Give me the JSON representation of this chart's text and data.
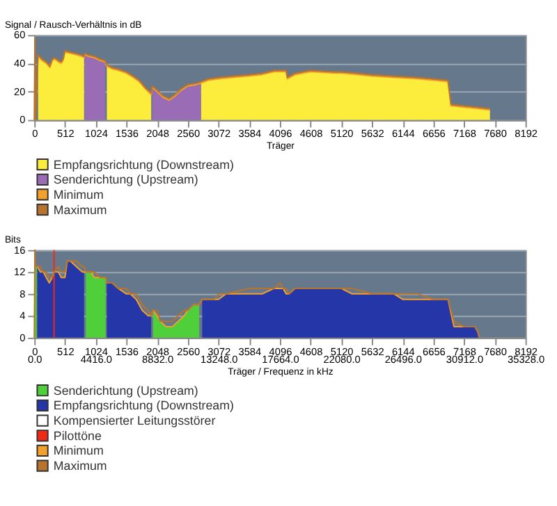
{
  "chart_data": [
    {
      "type": "area",
      "ylabel": "Signal / Rausch-Verhältnis in dB",
      "xlabel": "Träger",
      "xlim": [
        0,
        8192
      ],
      "xticks": [
        0,
        512,
        1024,
        1536,
        2048,
        2560,
        3072,
        3584,
        4096,
        4608,
        5120,
        5632,
        6144,
        6656,
        7168,
        7680,
        8192
      ],
      "ylim": [
        0,
        60
      ],
      "yticks": [
        0,
        20,
        40,
        60
      ],
      "grid": "y",
      "legend": "bottom left",
      "series": [
        {
          "name": "Empfangsrichtung (Downstream)",
          "color": "#fcec3c",
          "x": [
            64,
            128,
            200,
            260,
            300,
            340,
            400,
            450,
            480,
            512,
            600,
            700,
            780,
            830,
            835,
            1210,
            1300,
            1400,
            1536,
            1650,
            1750,
            1850,
            1950,
            2000,
            2780,
            2900,
            3072,
            3300,
            3584,
            3800,
            4000,
            4200,
            4220,
            4350,
            4608,
            5000,
            5120,
            5400,
            5632,
            6000,
            6400,
            6656,
            6900,
            6950,
            7168,
            7400,
            7600
          ],
          "values": [
            45,
            42,
            40,
            37,
            42,
            43,
            41,
            40,
            42,
            48,
            47,
            46,
            45,
            44,
            null,
            38,
            36,
            35,
            33,
            30,
            27,
            22,
            18,
            null,
            27,
            28,
            29,
            30,
            31,
            32,
            34,
            34,
            29,
            32,
            34,
            33,
            33,
            32,
            31,
            30,
            29,
            28,
            27,
            10,
            9,
            8,
            7
          ]
        },
        {
          "name": "Senderichtung (Upstream)",
          "color": "#9a6cb6",
          "x": [
            840,
            900,
            1000,
            1100,
            1180,
            1500,
            1970,
            2048,
            2150,
            2250,
            2350,
            2450,
            2560,
            2700,
            2780
          ],
          "values": [
            46,
            45,
            44,
            42,
            41,
            null,
            23,
            20,
            16,
            14,
            17,
            21,
            24,
            25,
            26
          ]
        },
        {
          "name": "Minimum",
          "color": "#f5a02a",
          "type": "line",
          "x": [
            64,
            128,
            200,
            260,
            300,
            340,
            400,
            450,
            480,
            512,
            600,
            700,
            780,
            830,
            840,
            900,
            1000,
            1100,
            1180,
            1210,
            1300,
            1400,
            1536,
            1650,
            1750,
            1850,
            1950,
            1970,
            2048,
            2150,
            2250,
            2350,
            2450,
            2560,
            2700,
            2780,
            2900,
            3072,
            3300,
            3584,
            3800,
            4000,
            4200,
            4220,
            4350,
            4608,
            5000,
            5120,
            5400,
            5632,
            6000,
            6400,
            6656,
            6900,
            6950,
            7168,
            7400,
            7600
          ],
          "values": [
            45,
            42,
            40,
            37,
            42,
            43,
            41,
            40,
            42,
            48,
            47,
            46,
            45,
            44,
            46,
            45,
            44,
            42,
            41,
            38,
            36,
            35,
            33,
            30,
            27,
            22,
            18,
            23,
            20,
            16,
            14,
            17,
            21,
            24,
            25,
            26,
            28,
            29,
            30,
            31,
            32,
            34,
            34,
            29,
            32,
            34,
            33,
            33,
            32,
            31,
            30,
            29,
            28,
            27,
            10,
            9,
            8,
            7
          ]
        },
        {
          "name": "Maximum",
          "color": "#b8742e",
          "type": "line",
          "x": [
            0,
            10,
            20,
            64,
            128,
            200,
            260,
            300,
            340,
            400,
            450,
            480,
            512,
            600,
            700,
            780,
            830,
            840,
            900,
            1000,
            1100,
            1180,
            1210,
            1300,
            1400,
            1536,
            1650,
            1750,
            1850,
            1950,
            1970,
            2048,
            2150,
            2250,
            2350,
            2450,
            2560,
            2700,
            2780,
            2900,
            3072,
            3300,
            3584,
            3800,
            4000,
            4200,
            4220,
            4350,
            4608,
            5000,
            5120,
            5400,
            5632,
            6000,
            6400,
            6656,
            6900,
            6950,
            7168,
            7400,
            7600
          ],
          "values": [
            0,
            58,
            0,
            46,
            43,
            41,
            38,
            43,
            44,
            42,
            41,
            43,
            49,
            48,
            47,
            46,
            45,
            47,
            46,
            45,
            43,
            42,
            39,
            37,
            36,
            34,
            31,
            28,
            23,
            19,
            24,
            21,
            17,
            15,
            18,
            22,
            25,
            26,
            27,
            29,
            30,
            31,
            32,
            33,
            35,
            35,
            30,
            33,
            35,
            34,
            34,
            33,
            32,
            31,
            30,
            29,
            28,
            11,
            10,
            9,
            8
          ]
        }
      ]
    },
    {
      "type": "area",
      "ylabel": "Bits",
      "x2label": "Träger / Frequenz in kHz",
      "xlim": [
        0,
        8192
      ],
      "xticks": [
        0,
        512,
        1024,
        1536,
        2048,
        2560,
        3072,
        3584,
        4096,
        4608,
        5120,
        5632,
        6144,
        6656,
        7168,
        7680,
        8192
      ],
      "x2lim": [
        0,
        35328
      ],
      "x2ticks": [
        {
          "value": 0,
          "label": "0.0"
        },
        {
          "value": 4416,
          "label": "4416.0"
        },
        {
          "value": 8832,
          "label": "8832.0"
        },
        {
          "value": 13248,
          "label": "13248.0"
        },
        {
          "value": 17664,
          "label": "17664.0"
        },
        {
          "value": 22080,
          "label": "22080.0"
        },
        {
          "value": 26496,
          "label": "26496.0"
        },
        {
          "value": 30912,
          "label": "30912.0"
        },
        {
          "value": 35328,
          "label": "35328.0"
        }
      ],
      "ylim": [
        0,
        16
      ],
      "yticks": [
        0,
        4,
        8,
        12,
        16
      ],
      "grid": "y",
      "legend": "bottom left",
      "series": [
        {
          "name": "Senderichtung (Upstream)",
          "color": "#4fcf3a",
          "x": [
            0,
            40,
            45,
            860,
            950,
            1000,
            1100,
            1190,
            1195,
            1980,
            2048,
            2100,
            2200,
            2300,
            2400,
            2500,
            2560,
            2650,
            2750
          ],
          "values": [
            13,
            13,
            null,
            12,
            12,
            11,
            11,
            11,
            null,
            5,
            4,
            3,
            2,
            2,
            3,
            4,
            5,
            6,
            6
          ]
        },
        {
          "name": "Empfangsrichtung (Downstream)",
          "color": "#2436a8",
          "x": [
            50,
            100,
            150,
            200,
            250,
            300,
            330,
            400,
            450,
            512,
            550,
            600,
            700,
            800,
            830,
            840,
            1210,
            1300,
            1400,
            1536,
            1600,
            1700,
            1800,
            1900,
            1950,
            1960,
            2800,
            3000,
            3072,
            3200,
            3584,
            3800,
            4000,
            4150,
            4200,
            4250,
            4350,
            4608,
            5120,
            5300,
            5632,
            6000,
            6144,
            6656,
            6900,
            7000,
            7168,
            7350,
            7400,
            7420
          ],
          "values": [
            13,
            12,
            12,
            11,
            10,
            11,
            12,
            12,
            11,
            11,
            14,
            14,
            13,
            12,
            12,
            null,
            10,
            10,
            9,
            8,
            8,
            7,
            5,
            4,
            4,
            null,
            7,
            7,
            7,
            8,
            8,
            8,
            9,
            9,
            8,
            8,
            9,
            9,
            9,
            8,
            8,
            8,
            7,
            7,
            7,
            2,
            2,
            2,
            1,
            0
          ]
        },
        {
          "name": "Kompensierter Leitungsstörer",
          "color": "#ffffff",
          "type": "area"
        },
        {
          "name": "Pilottöne",
          "color": "#f02a14",
          "type": "line",
          "x": [
            330,
            330
          ],
          "values": [
            0,
            16
          ]
        },
        {
          "name": "Minimum",
          "color": "#f5a02a",
          "type": "line",
          "x": [
            0,
            40,
            50,
            100,
            150,
            200,
            250,
            300,
            330,
            400,
            450,
            512,
            550,
            600,
            700,
            800,
            830,
            860,
            950,
            1000,
            1100,
            1190,
            1210,
            1300,
            1400,
            1536,
            1600,
            1700,
            1800,
            1900,
            1950,
            1980,
            2048,
            2100,
            2200,
            2300,
            2400,
            2500,
            2560,
            2650,
            2750,
            2800,
            3000,
            3072,
            3200,
            3584,
            3800,
            4000,
            4150,
            4200,
            4250,
            4350,
            4608,
            5120,
            5300,
            5632,
            6000,
            6144,
            6656,
            6900,
            7000,
            7168,
            7350,
            7400,
            7420
          ],
          "values": [
            13,
            13,
            13,
            12,
            12,
            11,
            10,
            11,
            12,
            12,
            11,
            11,
            14,
            14,
            13,
            12,
            12,
            12,
            12,
            11,
            11,
            11,
            10,
            10,
            9,
            8,
            8,
            7,
            5,
            4,
            4,
            5,
            4,
            3,
            2,
            2,
            3,
            4,
            5,
            6,
            6,
            7,
            7,
            7,
            8,
            8,
            8,
            9,
            9,
            8,
            8,
            9,
            9,
            9,
            8,
            8,
            8,
            7,
            7,
            7,
            2,
            2,
            2,
            1,
            0
          ]
        },
        {
          "name": "Maximum",
          "color": "#b8742e",
          "type": "line",
          "x": [
            0,
            10,
            20,
            40,
            50,
            100,
            150,
            200,
            250,
            300,
            330,
            400,
            450,
            512,
            550,
            600,
            700,
            800,
            830,
            860,
            950,
            1000,
            1100,
            1190,
            1210,
            1300,
            1400,
            1536,
            1600,
            1700,
            1800,
            1900,
            1950,
            1980,
            2048,
            2100,
            2200,
            2300,
            2400,
            2500,
            2560,
            2650,
            2750,
            2800,
            3000,
            3072,
            3200,
            3584,
            3800,
            4000,
            4100,
            4150,
            4200,
            4250,
            4350,
            4608,
            5120,
            5300,
            5632,
            6000,
            6144,
            6200,
            6400,
            6656,
            6900,
            7000,
            7168,
            7350,
            7400,
            7420
          ],
          "values": [
            0,
            16,
            13,
            13,
            13,
            13,
            12,
            12,
            11,
            11,
            12,
            13,
            12,
            12,
            14,
            14,
            14,
            13,
            13,
            12,
            12,
            12,
            11,
            11,
            10,
            10,
            9,
            9,
            8,
            8,
            6,
            5,
            4,
            5,
            5,
            3,
            3,
            3,
            4,
            5,
            5,
            6,
            6,
            7,
            7,
            8,
            8,
            9,
            9,
            9,
            10,
            9,
            9,
            8,
            9,
            9,
            9,
            9,
            8,
            8,
            8,
            8,
            8,
            7,
            7,
            3,
            2,
            2,
            1,
            0
          ]
        }
      ]
    }
  ]
}
